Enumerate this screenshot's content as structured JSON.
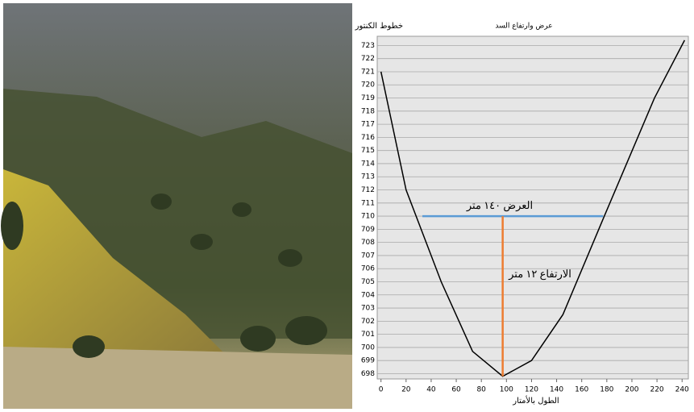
{
  "chart_data": {
    "type": "line",
    "title": "عرض وارتفاع السد",
    "xlabel": "الطول بالأمتار",
    "ylabel": "خطوط الكنتور",
    "xlim": [
      -3,
      245
    ],
    "ylim": [
      697.6,
      723.7
    ],
    "xticks": [
      0,
      20,
      40,
      60,
      80,
      100,
      120,
      140,
      160,
      180,
      200,
      220,
      240
    ],
    "yticks": [
      698,
      699,
      700,
      701,
      702,
      703,
      704,
      705,
      706,
      707,
      708,
      709,
      710,
      711,
      712,
      713,
      714,
      715,
      716,
      717,
      718,
      719,
      720,
      721,
      722,
      723
    ],
    "grid": true,
    "series": [
      {
        "color": "#000000",
        "x": [
          0,
          20,
          48,
          73,
          97,
          120,
          145,
          178,
          218,
          242
        ],
        "values": [
          721,
          712,
          705,
          699.7,
          697.8,
          699,
          702.5,
          710,
          719,
          723.4
        ]
      },
      {
        "color": "#5b9bd5",
        "x": [
          33,
          177
        ],
        "values": [
          710,
          710
        ]
      },
      {
        "color": "#ed7d31",
        "x": [
          97,
          97
        ],
        "values": [
          697.8,
          710
        ]
      }
    ],
    "annotations": [
      "العرض ١٤٠ متر",
      "الارتفاع ١٢ متر"
    ]
  }
}
